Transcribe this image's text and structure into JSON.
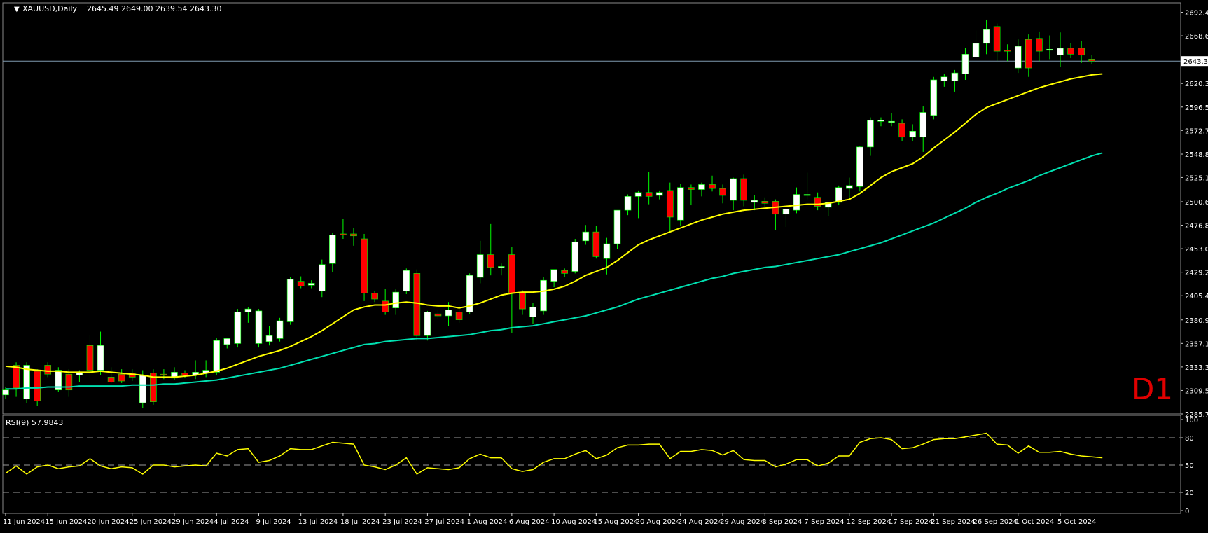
{
  "main_chart": {
    "header": {
      "symbol": "XAUUSD,Daily",
      "ohlc": "2645.49 2649.00 2639.54 2643.30"
    },
    "timeframe_label": "D1",
    "price_axis_ticks": [
      "2692.40",
      "2668.60",
      "2643.30",
      "2620.30",
      "2596.50",
      "2572.70",
      "2548.80",
      "2525.10",
      "2500.60",
      "2476.80",
      "2453.00",
      "2429.20",
      "2405.40",
      "2380.90",
      "2357.10",
      "2333.30",
      "2309.50",
      "2285.70"
    ],
    "current_price_label": "2643.30",
    "date_labels": [
      "11 Jun 2024",
      "15 Jun 2024",
      "20 Jun 2024",
      "25 Jun 2024",
      "29 Jun 2024",
      "4 Jul 2024",
      "9 Jul 2024",
      "13 Jul 2024",
      "18 Jul 2024",
      "23 Jul 2024",
      "27 Jul 2024",
      "1 Aug 2024",
      "6 Aug 2024",
      "10 Aug 2024",
      "15 Aug 2024",
      "20 Aug 2024",
      "24 Aug 2024",
      "29 Aug 2024",
      "3 Sep 2024",
      "7 Sep 2024",
      "12 Sep 2024",
      "17 Sep 2024",
      "21 Sep 2024",
      "26 Sep 2024",
      "1 Oct 2024",
      "5 Oct 2024"
    ],
    "colors": {
      "bull": "#FFFFFF",
      "bear": "#FF0000",
      "wick": "#00FF00",
      "ma_fast": "#FFFF00",
      "ma_slow": "#00E0B0",
      "grid": "#808080",
      "background": "#000000"
    }
  },
  "rsi_panel": {
    "label": "RSI(9) 57.9843",
    "axis_ticks": [
      "100",
      "80",
      "50",
      "20",
      "0"
    ],
    "color": "#FFFF00"
  },
  "chart_data": {
    "type": "candlestick",
    "symbol": "XAUUSD",
    "timeframe": "Daily",
    "ylim": [
      2285.7,
      2702
    ],
    "candles": [
      {
        "o": 2305,
        "h": 2313,
        "l": 2301,
        "c": 2310
      },
      {
        "o": 2335,
        "h": 2338,
        "l": 2303,
        "c": 2312
      },
      {
        "o": 2301,
        "h": 2338,
        "l": 2297,
        "c": 2335
      },
      {
        "o": 2329,
        "h": 2331,
        "l": 2294,
        "c": 2299
      },
      {
        "o": 2335,
        "h": 2338,
        "l": 2323,
        "c": 2326
      },
      {
        "o": 2310,
        "h": 2333,
        "l": 2308,
        "c": 2330
      },
      {
        "o": 2326,
        "h": 2331,
        "l": 2303,
        "c": 2310
      },
      {
        "o": 2325,
        "h": 2330,
        "l": 2318,
        "c": 2328
      },
      {
        "o": 2355,
        "h": 2366,
        "l": 2322,
        "c": 2330
      },
      {
        "o": 2330,
        "h": 2369,
        "l": 2325,
        "c": 2355
      },
      {
        "o": 2323,
        "h": 2333,
        "l": 2317,
        "c": 2318
      },
      {
        "o": 2326,
        "h": 2331,
        "l": 2317,
        "c": 2319
      },
      {
        "o": 2327,
        "h": 2331,
        "l": 2319,
        "c": 2323
      },
      {
        "o": 2297,
        "h": 2330,
        "l": 2292,
        "c": 2325
      },
      {
        "o": 2327,
        "h": 2331,
        "l": 2295,
        "c": 2298
      },
      {
        "o": 2326,
        "h": 2331,
        "l": 2321,
        "c": 2325
      },
      {
        "o": 2322,
        "h": 2333,
        "l": 2320,
        "c": 2328
      },
      {
        "o": 2327,
        "h": 2330,
        "l": 2322,
        "c": 2325
      },
      {
        "o": 2325,
        "h": 2340,
        "l": 2321,
        "c": 2328
      },
      {
        "o": 2327,
        "h": 2340,
        "l": 2323,
        "c": 2330
      },
      {
        "o": 2328,
        "h": 2363,
        "l": 2325,
        "c": 2360
      },
      {
        "o": 2356,
        "h": 2362,
        "l": 2352,
        "c": 2362
      },
      {
        "o": 2357,
        "h": 2392,
        "l": 2353,
        "c": 2389
      },
      {
        "o": 2389,
        "h": 2394,
        "l": 2378,
        "c": 2392
      },
      {
        "o": 2357,
        "h": 2392,
        "l": 2353,
        "c": 2390
      },
      {
        "o": 2359,
        "h": 2375,
        "l": 2355,
        "c": 2365
      },
      {
        "o": 2362,
        "h": 2383,
        "l": 2359,
        "c": 2380
      },
      {
        "o": 2379,
        "h": 2424,
        "l": 2376,
        "c": 2422
      },
      {
        "o": 2420,
        "h": 2425,
        "l": 2413,
        "c": 2415
      },
      {
        "o": 2416,
        "h": 2421,
        "l": 2413,
        "c": 2418
      },
      {
        "o": 2410,
        "h": 2442,
        "l": 2404,
        "c": 2437
      },
      {
        "o": 2438,
        "h": 2469,
        "l": 2429,
        "c": 2467
      },
      {
        "o": 2468,
        "h": 2483,
        "l": 2463,
        "c": 2467
      },
      {
        "o": 2468,
        "h": 2474,
        "l": 2456,
        "c": 2466
      },
      {
        "o": 2463,
        "h": 2468,
        "l": 2400,
        "c": 2408
      },
      {
        "o": 2408,
        "h": 2410,
        "l": 2399,
        "c": 2402
      },
      {
        "o": 2400,
        "h": 2412,
        "l": 2386,
        "c": 2389
      },
      {
        "o": 2393,
        "h": 2412,
        "l": 2386,
        "c": 2409
      },
      {
        "o": 2410,
        "h": 2433,
        "l": 2407,
        "c": 2431
      },
      {
        "o": 2428,
        "h": 2432,
        "l": 2360,
        "c": 2365
      },
      {
        "o": 2365,
        "h": 2390,
        "l": 2360,
        "c": 2389
      },
      {
        "o": 2387,
        "h": 2391,
        "l": 2382,
        "c": 2385
      },
      {
        "o": 2385,
        "h": 2399,
        "l": 2375,
        "c": 2391
      },
      {
        "o": 2389,
        "h": 2395,
        "l": 2378,
        "c": 2381
      },
      {
        "o": 2389,
        "h": 2428,
        "l": 2387,
        "c": 2426
      },
      {
        "o": 2424,
        "h": 2461,
        "l": 2418,
        "c": 2447
      },
      {
        "o": 2447,
        "h": 2478,
        "l": 2426,
        "c": 2434
      },
      {
        "o": 2434,
        "h": 2438,
        "l": 2426,
        "c": 2435
      },
      {
        "o": 2447,
        "h": 2455,
        "l": 2368,
        "c": 2408
      },
      {
        "o": 2408,
        "h": 2411,
        "l": 2386,
        "c": 2392
      },
      {
        "o": 2384,
        "h": 2398,
        "l": 2377,
        "c": 2394
      },
      {
        "o": 2390,
        "h": 2424,
        "l": 2386,
        "c": 2421
      },
      {
        "o": 2420,
        "h": 2432,
        "l": 2414,
        "c": 2432
      },
      {
        "o": 2431,
        "h": 2433,
        "l": 2424,
        "c": 2428
      },
      {
        "o": 2430,
        "h": 2463,
        "l": 2428,
        "c": 2460
      },
      {
        "o": 2461,
        "h": 2477,
        "l": 2457,
        "c": 2470
      },
      {
        "o": 2470,
        "h": 2476,
        "l": 2443,
        "c": 2445
      },
      {
        "o": 2443,
        "h": 2464,
        "l": 2427,
        "c": 2458
      },
      {
        "o": 2458,
        "h": 2492,
        "l": 2453,
        "c": 2492
      },
      {
        "o": 2492,
        "h": 2508,
        "l": 2487,
        "c": 2506
      },
      {
        "o": 2506,
        "h": 2512,
        "l": 2484,
        "c": 2510
      },
      {
        "o": 2510,
        "h": 2531,
        "l": 2498,
        "c": 2506
      },
      {
        "o": 2507,
        "h": 2512,
        "l": 2503,
        "c": 2510
      },
      {
        "o": 2512,
        "h": 2520,
        "l": 2470,
        "c": 2485
      },
      {
        "o": 2482,
        "h": 2519,
        "l": 2476,
        "c": 2515
      },
      {
        "o": 2515,
        "h": 2518,
        "l": 2497,
        "c": 2513
      },
      {
        "o": 2513,
        "h": 2520,
        "l": 2506,
        "c": 2518
      },
      {
        "o": 2518,
        "h": 2527,
        "l": 2511,
        "c": 2514
      },
      {
        "o": 2514,
        "h": 2518,
        "l": 2499,
        "c": 2507
      },
      {
        "o": 2502,
        "h": 2525,
        "l": 2492,
        "c": 2524
      },
      {
        "o": 2524,
        "h": 2528,
        "l": 2496,
        "c": 2502
      },
      {
        "o": 2500,
        "h": 2507,
        "l": 2492,
        "c": 2502
      },
      {
        "o": 2501,
        "h": 2505,
        "l": 2495,
        "c": 2499
      },
      {
        "o": 2501,
        "h": 2503,
        "l": 2472,
        "c": 2488
      },
      {
        "o": 2488,
        "h": 2494,
        "l": 2475,
        "c": 2493
      },
      {
        "o": 2492,
        "h": 2515,
        "l": 2489,
        "c": 2508
      },
      {
        "o": 2507,
        "h": 2530,
        "l": 2503,
        "c": 2508
      },
      {
        "o": 2505,
        "h": 2510,
        "l": 2492,
        "c": 2496
      },
      {
        "o": 2495,
        "h": 2500,
        "l": 2486,
        "c": 2500
      },
      {
        "o": 2500,
        "h": 2517,
        "l": 2497,
        "c": 2515
      },
      {
        "o": 2514,
        "h": 2525,
        "l": 2504,
        "c": 2517
      },
      {
        "o": 2516,
        "h": 2557,
        "l": 2511,
        "c": 2556
      },
      {
        "o": 2556,
        "h": 2586,
        "l": 2547,
        "c": 2583
      },
      {
        "o": 2582,
        "h": 2586,
        "l": 2577,
        "c": 2583
      },
      {
        "o": 2581,
        "h": 2590,
        "l": 2577,
        "c": 2582
      },
      {
        "o": 2580,
        "h": 2584,
        "l": 2562,
        "c": 2566
      },
      {
        "o": 2566,
        "h": 2579,
        "l": 2562,
        "c": 2572
      },
      {
        "o": 2566,
        "h": 2597,
        "l": 2551,
        "c": 2591
      },
      {
        "o": 2588,
        "h": 2627,
        "l": 2584,
        "c": 2624
      },
      {
        "o": 2623,
        "h": 2630,
        "l": 2617,
        "c": 2627
      },
      {
        "o": 2623,
        "h": 2634,
        "l": 2612,
        "c": 2631
      },
      {
        "o": 2630,
        "h": 2656,
        "l": 2624,
        "c": 2650
      },
      {
        "o": 2647,
        "h": 2674,
        "l": 2645,
        "c": 2661
      },
      {
        "o": 2661,
        "h": 2685,
        "l": 2650,
        "c": 2675
      },
      {
        "o": 2678,
        "h": 2681,
        "l": 2643,
        "c": 2653
      },
      {
        "o": 2654,
        "h": 2660,
        "l": 2643,
        "c": 2653
      },
      {
        "o": 2636,
        "h": 2665,
        "l": 2631,
        "c": 2658
      },
      {
        "o": 2665,
        "h": 2670,
        "l": 2627,
        "c": 2636
      },
      {
        "o": 2666,
        "h": 2673,
        "l": 2643,
        "c": 2653
      },
      {
        "o": 2654,
        "h": 2669,
        "l": 2645,
        "c": 2655
      },
      {
        "o": 2649,
        "h": 2672,
        "l": 2637,
        "c": 2656
      },
      {
        "o": 2656,
        "h": 2661,
        "l": 2646,
        "c": 2650
      },
      {
        "o": 2656,
        "h": 2663,
        "l": 2641,
        "c": 2649
      },
      {
        "o": 2645,
        "h": 2649,
        "l": 2640,
        "c": 2643
      }
    ],
    "ma_fast": [
      2334,
      2333,
      2331,
      2330,
      2329,
      2329,
      2328,
      2328,
      2328,
      2329,
      2328,
      2327,
      2326,
      2325,
      2323,
      2323,
      2323,
      2324,
      2325,
      2327,
      2329,
      2332,
      2336,
      2340,
      2344,
      2347,
      2350,
      2354,
      2359,
      2364,
      2370,
      2377,
      2384,
      2391,
      2394,
      2396,
      2396,
      2398,
      2399,
      2398,
      2396,
      2395,
      2395,
      2393,
      2395,
      2398,
      2402,
      2406,
      2408,
      2409,
      2409,
      2410,
      2412,
      2415,
      2420,
      2426,
      2430,
      2434,
      2441,
      2449,
      2457,
      2462,
      2466,
      2470,
      2474,
      2478,
      2482,
      2485,
      2488,
      2490,
      2492,
      2493,
      2494,
      2495,
      2496,
      2497,
      2498,
      2498,
      2499,
      2501,
      2503,
      2509,
      2517,
      2525,
      2531,
      2535,
      2539,
      2546,
      2555,
      2563,
      2571,
      2580,
      2589,
      2596,
      2600,
      2604,
      2608,
      2612,
      2616,
      2619,
      2622,
      2625,
      2627,
      2629,
      2630
    ],
    "ma_slow": [
      2311,
      2311,
      2312,
      2312,
      2313,
      2313,
      2313,
      2314,
      2314,
      2314,
      2314,
      2314,
      2315,
      2315,
      2315,
      2316,
      2316,
      2317,
      2318,
      2319,
      2320,
      2322,
      2324,
      2326,
      2328,
      2330,
      2332,
      2335,
      2338,
      2341,
      2344,
      2347,
      2350,
      2353,
      2356,
      2357,
      2359,
      2360,
      2361,
      2362,
      2362,
      2363,
      2364,
      2365,
      2366,
      2368,
      2370,
      2371,
      2373,
      2374,
      2375,
      2377,
      2379,
      2381,
      2383,
      2385,
      2388,
      2391,
      2394,
      2398,
      2402,
      2405,
      2408,
      2411,
      2414,
      2417,
      2420,
      2423,
      2425,
      2428,
      2430,
      2432,
      2434,
      2435,
      2437,
      2439,
      2441,
      2443,
      2445,
      2447,
      2450,
      2453,
      2456,
      2459,
      2463,
      2467,
      2471,
      2475,
      2479,
      2484,
      2489,
      2494,
      2500,
      2505,
      2509,
      2514,
      2518,
      2522,
      2527,
      2531,
      2535,
      2539,
      2543,
      2547,
      2550
    ],
    "rsi": [
      41,
      49,
      40,
      48,
      50,
      46,
      48,
      49,
      57,
      49,
      46,
      48,
      47,
      40,
      50,
      50,
      48,
      49,
      50,
      49,
      63,
      60,
      67,
      68,
      53,
      55,
      60,
      68,
      67,
      67,
      71,
      75,
      74,
      73,
      50,
      48,
      45,
      50,
      58,
      40,
      47,
      46,
      45,
      47,
      57,
      62,
      58,
      58,
      46,
      43,
      45,
      53,
      57,
      57,
      62,
      66,
      57,
      61,
      69,
      72,
      72,
      73,
      73,
      57,
      65,
      65,
      67,
      66,
      61,
      66,
      56,
      55,
      55,
      48,
      51,
      56,
      56,
      49,
      52,
      60,
      60,
      75,
      79,
      80,
      78,
      68,
      69,
      73,
      78,
      79,
      79,
      81,
      83,
      85,
      73,
      72,
      63,
      71,
      64,
      64,
      65,
      62,
      60,
      59,
      58
    ],
    "rsi_ylim": [
      0,
      100
    ],
    "rsi_levels": [
      80,
      50,
      20
    ]
  }
}
